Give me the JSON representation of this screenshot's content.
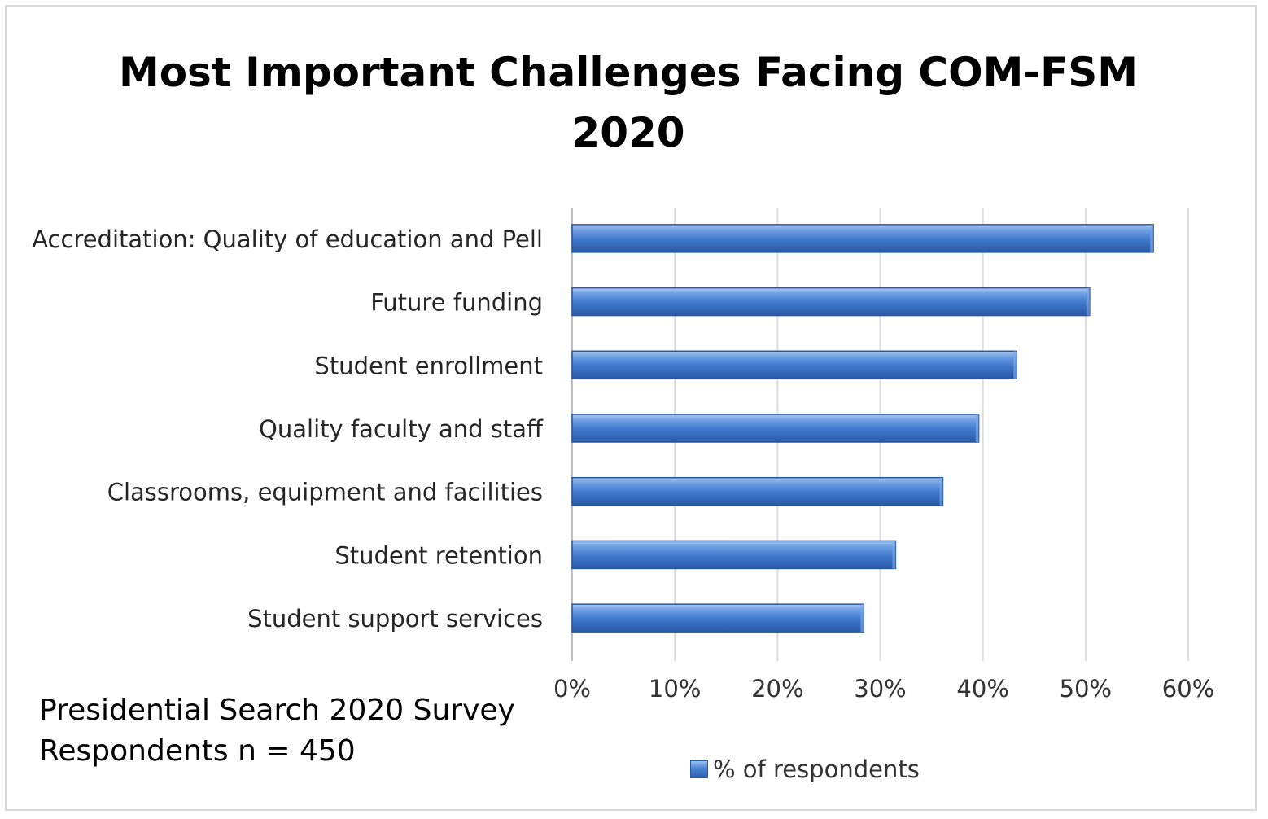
{
  "chart_data": {
    "type": "bar",
    "orientation": "horizontal",
    "title": [
      "Most Important Challenges Facing COM-FSM",
      "2020"
    ],
    "categories": [
      "Accreditation: Quality of education and Pell",
      "Future funding",
      "Student enrollment",
      "Quality faculty and staff",
      "Classrooms, equipment and facilities",
      "Student retention",
      "Student support services"
    ],
    "series": [
      {
        "name": "% of respondents",
        "values": [
          56.6,
          50.4,
          43.3,
          39.6,
          36.1,
          31.5,
          28.4
        ],
        "color": "#4a7fd0"
      }
    ],
    "x_ticks": [
      "0%",
      "10%",
      "20%",
      "30%",
      "40%",
      "50%",
      "60%"
    ],
    "xlim": [
      0,
      60
    ],
    "grid": true,
    "legend": "bottom"
  },
  "annotation": [
    "Presidential Search 2020 Survey",
    "Respondents n = 450"
  ]
}
